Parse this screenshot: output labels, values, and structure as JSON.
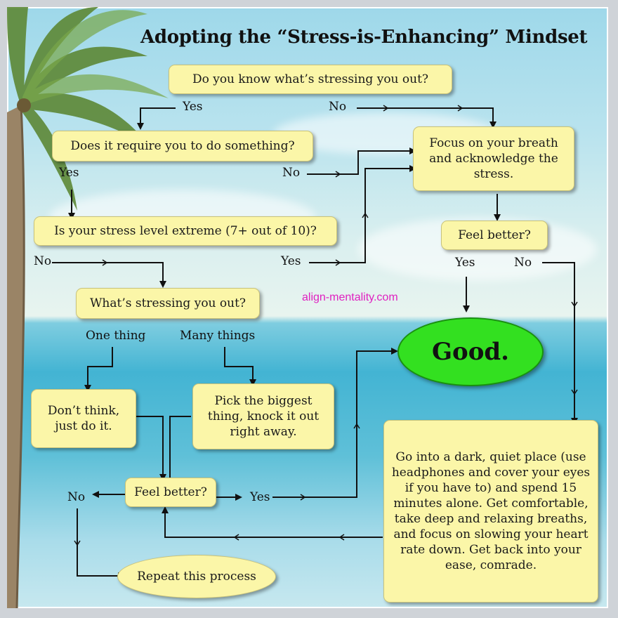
{
  "title": "Adopting the “Stress-is-Enhancing” Mindset",
  "source_url": "align-mentality.com",
  "nodes": {
    "know_stressor": "Do you know what’s stressing you out?",
    "require_action": "Does it require you to do something?",
    "focus_breath": "Focus on your breath and acknowledge the stress.",
    "stress_extreme": "Is your stress level extreme (7+ out of 10)?",
    "feel_better_top": "Feel better?",
    "whats_stressing": "What’s stressing you out?",
    "just_do_it": "Don’t think, just do it.",
    "pick_biggest": "Pick the biggest thing, knock it out right away.",
    "feel_better_bottom": "Feel better?",
    "repeat_process": "Repeat this process",
    "dark_quiet_place": "Go into a dark, quiet place (use headphones and cover your eyes if you have to) and spend 15 minutes alone. Get comfortable, take deep and relaxing breaths, and focus on slowing your heart rate down. Get back into your ease, comrade.",
    "good": "Good."
  },
  "edges": {
    "yes_1": "Yes",
    "no_1": "No",
    "yes_2": "Yes",
    "no_2": "No",
    "no_3": "No",
    "yes_3": "Yes",
    "yes_4": "Yes",
    "no_4": "No",
    "one_thing": "One thing",
    "many_things": "Many things",
    "no_5": "No",
    "yes_5": "Yes"
  },
  "colors": {
    "node_fill": "#fbf6a8",
    "good_fill": "#33e020",
    "url_color": "#e020c0"
  }
}
